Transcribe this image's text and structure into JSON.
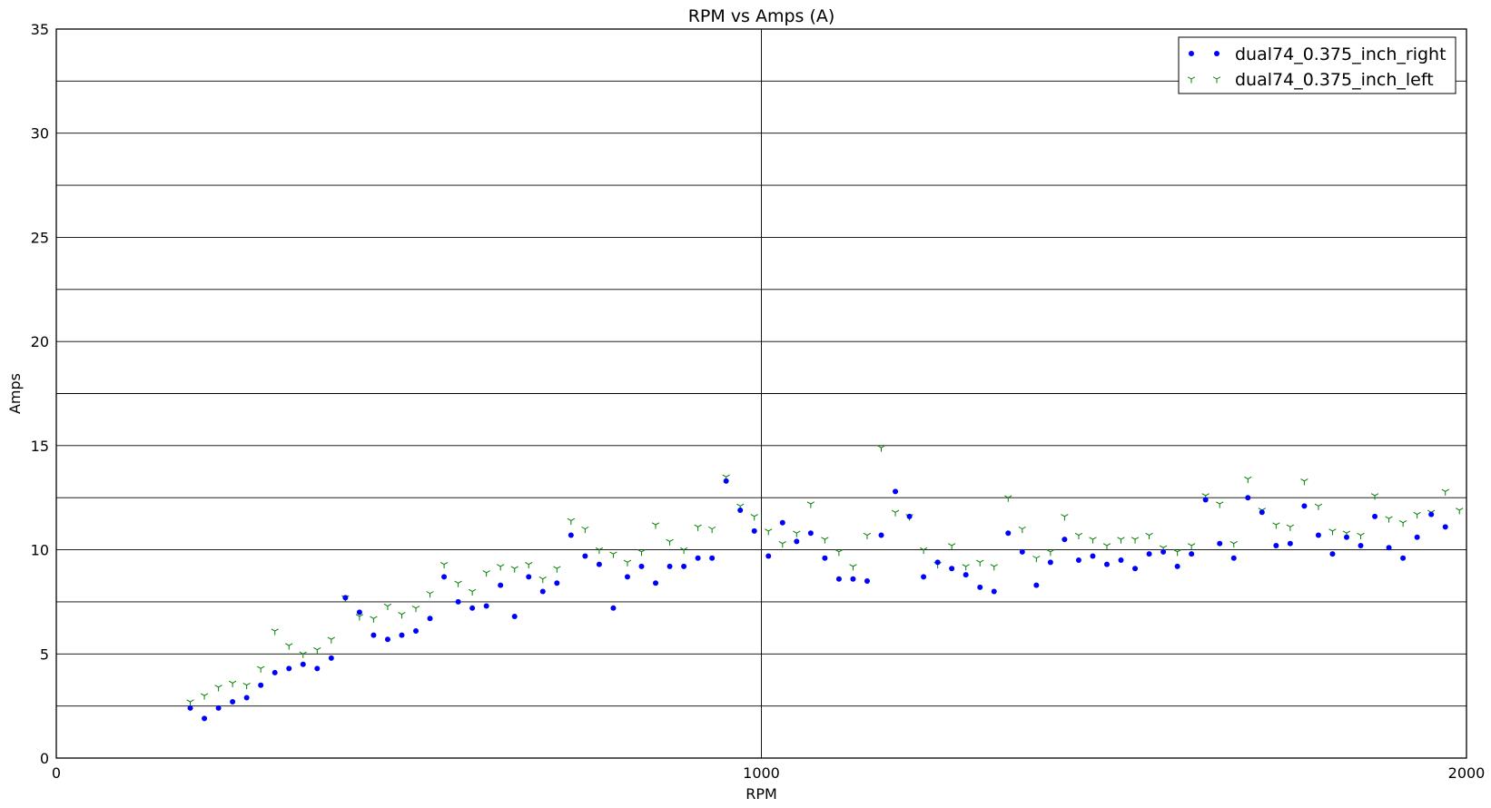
{
  "chart_data": {
    "type": "scatter",
    "title": "RPM vs Amps (A)",
    "xlabel": "RPM",
    "ylabel": "Amps",
    "xlim": [
      0,
      2000
    ],
    "ylim": [
      0,
      35
    ],
    "x_ticks": [
      0,
      1000,
      2000
    ],
    "y_ticks": [
      0,
      5,
      10,
      15,
      20,
      25,
      30,
      35
    ],
    "y_minor_grid": [
      2.5,
      7.5,
      12.5,
      17.5,
      22.5,
      27.5,
      32.5
    ],
    "x_grid": [
      1000
    ],
    "grid": true,
    "legend": "top-right",
    "series": [
      {
        "name": "dual74_0.375_inch_right",
        "marker": "dot",
        "color": "#0000ff",
        "x": [
          190,
          210,
          230,
          250,
          270,
          290,
          310,
          330,
          350,
          370,
          390,
          410,
          430,
          450,
          470,
          490,
          510,
          530,
          550,
          570,
          590,
          610,
          630,
          650,
          670,
          690,
          710,
          730,
          750,
          770,
          790,
          810,
          830,
          850,
          870,
          890,
          910,
          930,
          950,
          970,
          990,
          1010,
          1030,
          1050,
          1070,
          1090,
          1110,
          1130,
          1150,
          1170,
          1190,
          1210,
          1230,
          1250,
          1270,
          1290,
          1310,
          1330,
          1350,
          1370,
          1390,
          1410,
          1430,
          1450,
          1470,
          1490,
          1510,
          1530,
          1550,
          1570,
          1590,
          1610,
          1630,
          1650,
          1670,
          1690,
          1710,
          1730,
          1750,
          1770,
          1790,
          1810,
          1830,
          1850,
          1870,
          1890,
          1910,
          1930,
          1950,
          1970
        ],
        "y": [
          2.4,
          1.9,
          2.4,
          2.7,
          2.9,
          3.5,
          4.1,
          4.3,
          4.5,
          4.3,
          4.8,
          7.7,
          7.0,
          5.9,
          5.7,
          5.9,
          6.1,
          6.7,
          8.7,
          7.5,
          7.2,
          7.3,
          8.3,
          6.8,
          8.7,
          8.0,
          8.4,
          10.7,
          9.7,
          9.3,
          7.2,
          8.7,
          9.2,
          8.4,
          9.2,
          9.2,
          9.6,
          9.6,
          13.3,
          11.9,
          10.9,
          9.7,
          11.3,
          10.4,
          10.8,
          9.6,
          8.6,
          8.6,
          8.5,
          10.7,
          12.8,
          11.6,
          8.7,
          9.4,
          9.1,
          8.8,
          8.2,
          8.0,
          10.8,
          9.9,
          8.3,
          9.4,
          10.5,
          9.5,
          9.7,
          9.3,
          9.5,
          9.1,
          9.8,
          9.9,
          9.2,
          9.8,
          12.4,
          10.3,
          9.6,
          12.5,
          11.8,
          10.2,
          10.3,
          12.1,
          10.7,
          9.8,
          10.6,
          10.2,
          11.6,
          10.1,
          9.6,
          10.6,
          11.7,
          11.1
        ]
      },
      {
        "name": "dual74_0.375_inch_left",
        "marker": "tri_down",
        "color": "#008000",
        "x": [
          190,
          210,
          230,
          250,
          270,
          290,
          310,
          330,
          350,
          370,
          390,
          410,
          430,
          450,
          470,
          490,
          510,
          530,
          550,
          570,
          590,
          610,
          630,
          650,
          670,
          690,
          710,
          730,
          750,
          770,
          790,
          810,
          830,
          850,
          870,
          890,
          910,
          930,
          950,
          970,
          990,
          1010,
          1030,
          1050,
          1070,
          1090,
          1110,
          1130,
          1150,
          1170,
          1190,
          1210,
          1230,
          1250,
          1270,
          1290,
          1310,
          1330,
          1350,
          1370,
          1390,
          1410,
          1430,
          1450,
          1470,
          1490,
          1510,
          1530,
          1550,
          1570,
          1590,
          1610,
          1630,
          1650,
          1670,
          1690,
          1710,
          1730,
          1750,
          1770,
          1790,
          1810,
          1830,
          1850,
          1870,
          1890,
          1910,
          1930,
          1950,
          1970,
          1990
        ],
        "y": [
          2.7,
          3.0,
          3.4,
          3.6,
          3.5,
          4.3,
          6.1,
          5.4,
          5.0,
          5.2,
          5.7,
          7.7,
          6.8,
          6.7,
          7.3,
          6.9,
          7.2,
          7.9,
          9.3,
          8.4,
          8.0,
          8.9,
          9.2,
          9.1,
          9.3,
          8.6,
          9.1,
          11.4,
          11.0,
          10.0,
          9.8,
          9.4,
          9.9,
          11.2,
          10.4,
          10.0,
          11.1,
          11.0,
          13.5,
          12.1,
          11.6,
          10.9,
          10.3,
          10.8,
          12.2,
          10.5,
          9.9,
          9.2,
          10.7,
          14.9,
          11.8,
          11.6,
          10.0,
          9.3,
          10.2,
          9.2,
          9.4,
          9.2,
          12.5,
          11.0,
          9.6,
          9.9,
          11.6,
          10.7,
          10.5,
          10.2,
          10.5,
          10.5,
          10.7,
          10.1,
          9.9,
          10.2,
          12.6,
          12.2,
          10.3,
          13.4,
          11.9,
          11.2,
          11.1,
          13.3,
          12.1,
          10.9,
          10.8,
          10.7,
          12.6,
          11.5,
          11.3,
          11.7,
          11.8,
          12.8,
          11.9
        ]
      }
    ]
  }
}
